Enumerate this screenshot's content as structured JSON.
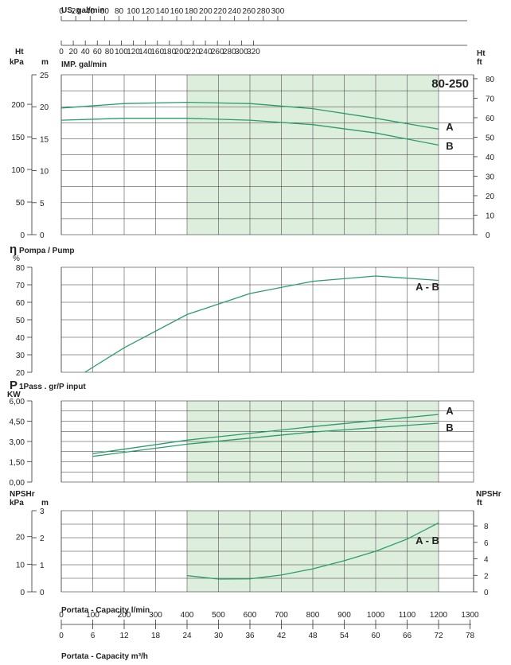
{
  "chart_data": [
    {
      "type": "line",
      "model": "80-250",
      "label_head_total": "Ht",
      "label_kpa": "kPa",
      "label_m": "m",
      "label_ft": "ft",
      "label_us_flow": "US. gal/min",
      "label_imp_flow": "IMP. gal/min",
      "x_label": "Portata - Capacity l/min",
      "x_label_m3h": "Portata - Capacity m³/h",
      "x_lpm_ticks": [
        "0",
        "100",
        "200",
        "300",
        "400",
        "500",
        "600",
        "700",
        "800",
        "900",
        "1000",
        "1100",
        "1200",
        "1300"
      ],
      "x_m3h_ticks": [
        "0",
        "6",
        "12",
        "18",
        "24",
        "30",
        "36",
        "42",
        "48",
        "54",
        "60",
        "66",
        "72",
        "78"
      ],
      "x_us_gpm_ticks": [
        "0",
        "20",
        "40",
        "60",
        "80",
        "100",
        "120",
        "140",
        "160",
        "180",
        "200",
        "220",
        "240",
        "260",
        "280"
      ],
      "x_us_gpm_tail": "300",
      "x_imp_gpm_ticks": [
        "0",
        "20",
        "40",
        "60",
        "80",
        "100",
        "120",
        "140",
        "160",
        "180",
        "200",
        "220",
        "240",
        "260",
        "280",
        "300"
      ],
      "x_imp_gpm_tail": "320",
      "y_m_ticks": [
        "0",
        "5",
        "10",
        "15",
        "20",
        "25"
      ],
      "y_kpa_ticks": [
        "0",
        "50",
        "100",
        "150",
        "200"
      ],
      "y_ft_ticks": [
        "0",
        "10",
        "20",
        "30",
        "40",
        "50",
        "60",
        "70",
        "80"
      ],
      "ylim_m": [
        0,
        25
      ],
      "xlim_lpm": [
        0,
        1200
      ],
      "operating_range_lpm": [
        400,
        1200
      ],
      "series": [
        {
          "name": "A",
          "x": [
            0,
            200,
            400,
            600,
            800,
            1000,
            1200
          ],
          "values": [
            19.8,
            20.5,
            20.7,
            20.5,
            19.7,
            18.2,
            16.5
          ]
        },
        {
          "name": "B",
          "x": [
            0,
            200,
            400,
            600,
            800,
            1000,
            1200
          ],
          "values": [
            17.9,
            18.2,
            18.2,
            17.9,
            17.2,
            15.9,
            14.0
          ]
        }
      ]
    },
    {
      "type": "line",
      "label_eta": "η",
      "label_pump": "Pompa / Pump",
      "label_pct": "%",
      "y_ticks": [
        "20",
        "30",
        "40",
        "50",
        "60",
        "70",
        "80"
      ],
      "ylim": [
        20,
        80
      ],
      "series": [
        {
          "name": "A - B",
          "x": [
            75,
            200,
            400,
            600,
            800,
            1000,
            1200
          ],
          "values": [
            20,
            34,
            53,
            65,
            72,
            75,
            72.5
          ]
        }
      ]
    },
    {
      "type": "line",
      "label_p": "P",
      "label_input": "1Pass . gr/P input",
      "label_kw": "KW",
      "y_ticks": [
        "0,00",
        "1,50",
        "3,00",
        "4,50",
        "6,00"
      ],
      "ylim": [
        0,
        6
      ],
      "series": [
        {
          "name": "A",
          "x": [
            100,
            400,
            800,
            1200
          ],
          "values": [
            2.1,
            3.1,
            4.1,
            5.0
          ]
        },
        {
          "name": "B",
          "x": [
            100,
            400,
            800,
            1200
          ],
          "values": [
            1.9,
            2.8,
            3.7,
            4.35
          ]
        }
      ]
    },
    {
      "type": "line",
      "label_npshr": "NPSHr",
      "label_kpa": "kPa",
      "label_m": "m",
      "label_ft": "ft",
      "y_m_ticks": [
        "0",
        "1",
        "2",
        "3"
      ],
      "y_kpa_ticks": [
        "0",
        "10",
        "20"
      ],
      "y_ft_ticks": [
        "0",
        "2",
        "4",
        "6",
        "8"
      ],
      "ylim_m": [
        0,
        3
      ],
      "series": [
        {
          "name": "A - B",
          "x": [
            400,
            500,
            600,
            700,
            800,
            900,
            1000,
            1100,
            1200
          ],
          "values": [
            0.6,
            0.47,
            0.48,
            0.62,
            0.85,
            1.15,
            1.5,
            1.95,
            2.55
          ]
        }
      ]
    }
  ]
}
